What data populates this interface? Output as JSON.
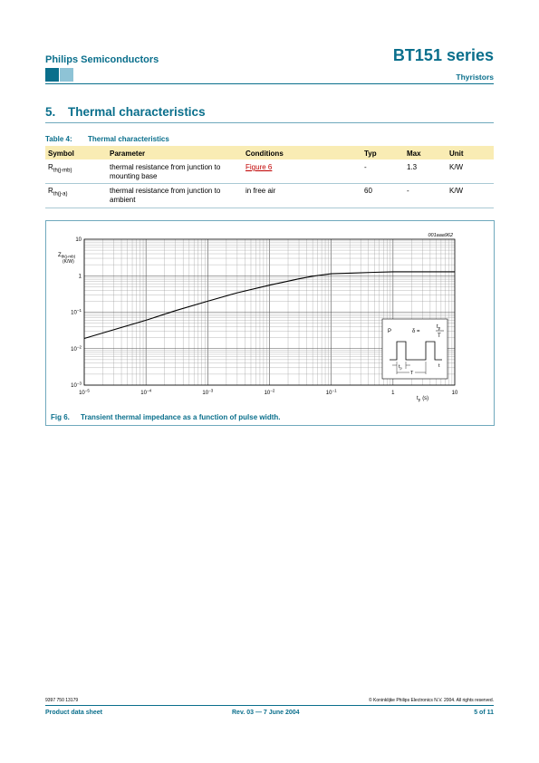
{
  "header": {
    "company": "Philips Semiconductors",
    "series": "BT151 series",
    "category": "Thyristors"
  },
  "section": {
    "number": "5.",
    "title": "Thermal characteristics"
  },
  "table": {
    "caption_label": "Table 4:",
    "caption_title": "Thermal characteristics",
    "columns": [
      "Symbol",
      "Parameter",
      "Conditions",
      "Typ",
      "Max",
      "Unit"
    ],
    "rows": [
      {
        "symbol_main": "R",
        "symbol_sub": "th(j-mb)",
        "parameter_line1": "thermal resistance from junction to",
        "parameter_line2": "mounting base",
        "conditions": "Figure 6",
        "typ": "-",
        "max": "1.3",
        "unit": "K/W"
      },
      {
        "symbol_main": "R",
        "symbol_sub": "th(j-a)",
        "parameter_line1": "thermal resistance from junction to",
        "parameter_line2": "ambient",
        "conditions": "in free air",
        "typ": "60",
        "max": "-",
        "unit": "K/W"
      }
    ]
  },
  "figure": {
    "code": "001aaa962",
    "caption_label": "Fig 6.",
    "caption_title": "Transient thermal impedance as a function of pulse width.",
    "inset": {
      "p_label": "P",
      "delta": "δ =",
      "tp_top": "t",
      "tp_top_sub": "p",
      "t_bottom": "T",
      "tp_label": "t",
      "tp_label_sub": "p",
      "T_label": "T",
      "t_label": "t"
    }
  },
  "chart_data": {
    "type": "line",
    "title": "",
    "ylabel_main": "Z",
    "ylabel_sub": "th(j-mb)",
    "ylabel_unit": "(K/W)",
    "xlabel_main": "t",
    "xlabel_sub": "p",
    "xlabel_unit": "(s)",
    "x_scale": "log",
    "y_scale": "log",
    "xlim": [
      1e-05,
      10
    ],
    "ylim": [
      0.001,
      10
    ],
    "grid": true,
    "x_ticks": [
      {
        "base": "10",
        "exp": "−5",
        "value": 1e-05
      },
      {
        "base": "10",
        "exp": "−4",
        "value": 0.0001
      },
      {
        "base": "10",
        "exp": "−3",
        "value": 0.001
      },
      {
        "base": "10",
        "exp": "−2",
        "value": 0.01
      },
      {
        "base": "10",
        "exp": "−1",
        "value": 0.1
      },
      {
        "base": "1",
        "exp": "",
        "value": 1
      },
      {
        "base": "10",
        "exp": "",
        "value": 10
      }
    ],
    "y_ticks": [
      {
        "base": "10",
        "exp": "−3",
        "value": 0.001
      },
      {
        "base": "10",
        "exp": "−2",
        "value": 0.01
      },
      {
        "base": "10",
        "exp": "−1",
        "value": 0.1
      },
      {
        "base": "1",
        "exp": "",
        "value": 1
      },
      {
        "base": "10",
        "exp": "",
        "value": 10
      }
    ],
    "series": [
      {
        "x": [
          1e-05,
          3e-05,
          0.0001,
          0.0003,
          0.001,
          0.003,
          0.01,
          0.03,
          0.05,
          0.1,
          0.2,
          0.5,
          1,
          10
        ],
        "y": [
          0.019,
          0.033,
          0.06,
          0.11,
          0.2,
          0.34,
          0.55,
          0.82,
          0.97,
          1.13,
          1.18,
          1.24,
          1.28,
          1.28
        ]
      }
    ]
  },
  "footer": {
    "code": "9397 750 13179",
    "copyright": "© Koninklijke Philips Electronics N.V. 2004. All rights reserved.",
    "doc_type": "Product data sheet",
    "revision": "Rev. 03 — 7 June 2004",
    "page": "5 of 11"
  }
}
